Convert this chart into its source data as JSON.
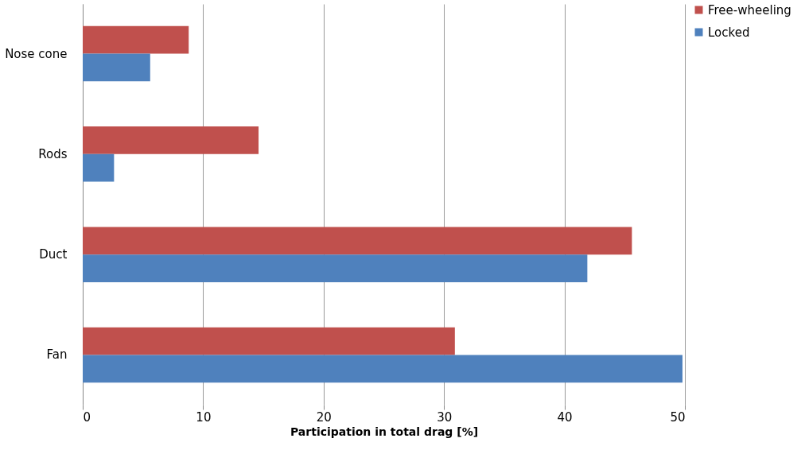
{
  "chart_data": {
    "type": "bar",
    "orientation": "horizontal",
    "xlabel": "Participation in total drag [%]",
    "categories": [
      "Nose cone",
      "Rods",
      "Duct",
      "Fan"
    ],
    "series": [
      {
        "name": "Free-wheeling",
        "color": "#c0504d",
        "values": [
          8.8,
          14.6,
          45.6,
          30.9
        ]
      },
      {
        "name": "Locked",
        "color": "#4f81bd",
        "values": [
          5.6,
          2.6,
          41.9,
          49.8
        ]
      }
    ],
    "xlim": [
      0,
      50
    ],
    "xticks": [
      0,
      10,
      20,
      30,
      40,
      50
    ],
    "grid": "x",
    "legend": "right"
  }
}
